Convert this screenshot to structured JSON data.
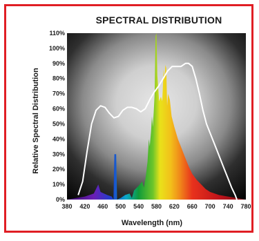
{
  "chart_data": {
    "type": "area",
    "title": "SPECTRAL DISTRIBUTION",
    "xlabel": "Wavelength (nm)",
    "ylabel": "Relative Spectral Distribution",
    "xlim": [
      380,
      780
    ],
    "ylim": [
      0,
      110
    ],
    "x_ticks": [
      "380",
      "420",
      "460",
      "500",
      "540",
      "580",
      "620",
      "660",
      "700",
      "740",
      "780"
    ],
    "y_ticks": [
      "0%",
      "10%",
      "20%",
      "30%",
      "40%",
      "50%",
      "60%",
      "70%",
      "80%",
      "90%",
      "100%",
      "110%"
    ],
    "series": [
      {
        "style": "spectrum-fill",
        "points": [
          [
            380,
            0
          ],
          [
            400,
            1
          ],
          [
            420,
            2
          ],
          [
            440,
            4
          ],
          [
            450,
            10
          ],
          [
            455,
            5
          ],
          [
            470,
            3
          ],
          [
            480,
            2
          ],
          [
            484,
            0
          ],
          [
            486,
            30
          ],
          [
            490,
            30
          ],
          [
            492,
            0
          ],
          [
            500,
            1
          ],
          [
            510,
            3
          ],
          [
            520,
            4
          ],
          [
            525,
            1
          ],
          [
            530,
            6
          ],
          [
            540,
            9
          ],
          [
            548,
            12
          ],
          [
            552,
            8
          ],
          [
            556,
            15
          ],
          [
            560,
            25
          ],
          [
            563,
            40
          ],
          [
            565,
            35
          ],
          [
            568,
            45
          ],
          [
            570,
            55
          ],
          [
            572,
            48
          ],
          [
            574,
            58
          ],
          [
            576,
            70
          ],
          [
            578,
            108
          ],
          [
            580,
            110
          ],
          [
            582,
            82
          ],
          [
            584,
            74
          ],
          [
            586,
            65
          ],
          [
            590,
            68
          ],
          [
            593,
            65
          ],
          [
            596,
            86
          ],
          [
            598,
            80
          ],
          [
            600,
            89
          ],
          [
            602,
            87
          ],
          [
            604,
            62
          ],
          [
            606,
            70
          ],
          [
            610,
            66
          ],
          [
            614,
            55
          ],
          [
            620,
            48
          ],
          [
            628,
            40
          ],
          [
            636,
            34
          ],
          [
            644,
            28
          ],
          [
            652,
            22
          ],
          [
            660,
            17
          ],
          [
            670,
            13
          ],
          [
            680,
            10
          ],
          [
            690,
            7
          ],
          [
            700,
            5
          ],
          [
            720,
            3
          ],
          [
            740,
            2
          ],
          [
            780,
            0
          ]
        ]
      },
      {
        "style": "white-line",
        "points": [
          [
            405,
            3
          ],
          [
            415,
            12
          ],
          [
            425,
            32
          ],
          [
            435,
            50
          ],
          [
            445,
            59
          ],
          [
            455,
            62
          ],
          [
            465,
            61
          ],
          [
            475,
            57
          ],
          [
            485,
            54
          ],
          [
            495,
            55
          ],
          [
            505,
            59
          ],
          [
            515,
            61
          ],
          [
            525,
            61
          ],
          [
            535,
            60
          ],
          [
            545,
            58
          ],
          [
            555,
            60
          ],
          [
            565,
            66
          ],
          [
            575,
            71
          ],
          [
            585,
            75
          ],
          [
            595,
            80
          ],
          [
            605,
            85
          ],
          [
            615,
            88
          ],
          [
            625,
            88
          ],
          [
            635,
            88
          ],
          [
            645,
            90
          ],
          [
            652,
            90
          ],
          [
            660,
            88
          ],
          [
            668,
            80
          ],
          [
            676,
            70
          ],
          [
            684,
            59
          ],
          [
            692,
            50
          ],
          [
            700,
            44
          ],
          [
            708,
            38
          ],
          [
            716,
            32
          ],
          [
            724,
            26
          ],
          [
            732,
            20
          ],
          [
            740,
            14
          ],
          [
            748,
            8
          ],
          [
            756,
            3
          ],
          [
            760,
            0
          ]
        ]
      }
    ],
    "grid": false,
    "legend": "none"
  },
  "colors": {
    "frame": "#e01e24",
    "background_glow": "#d9d9d9",
    "background_dark": "#050505",
    "curve": "#ffffff"
  }
}
